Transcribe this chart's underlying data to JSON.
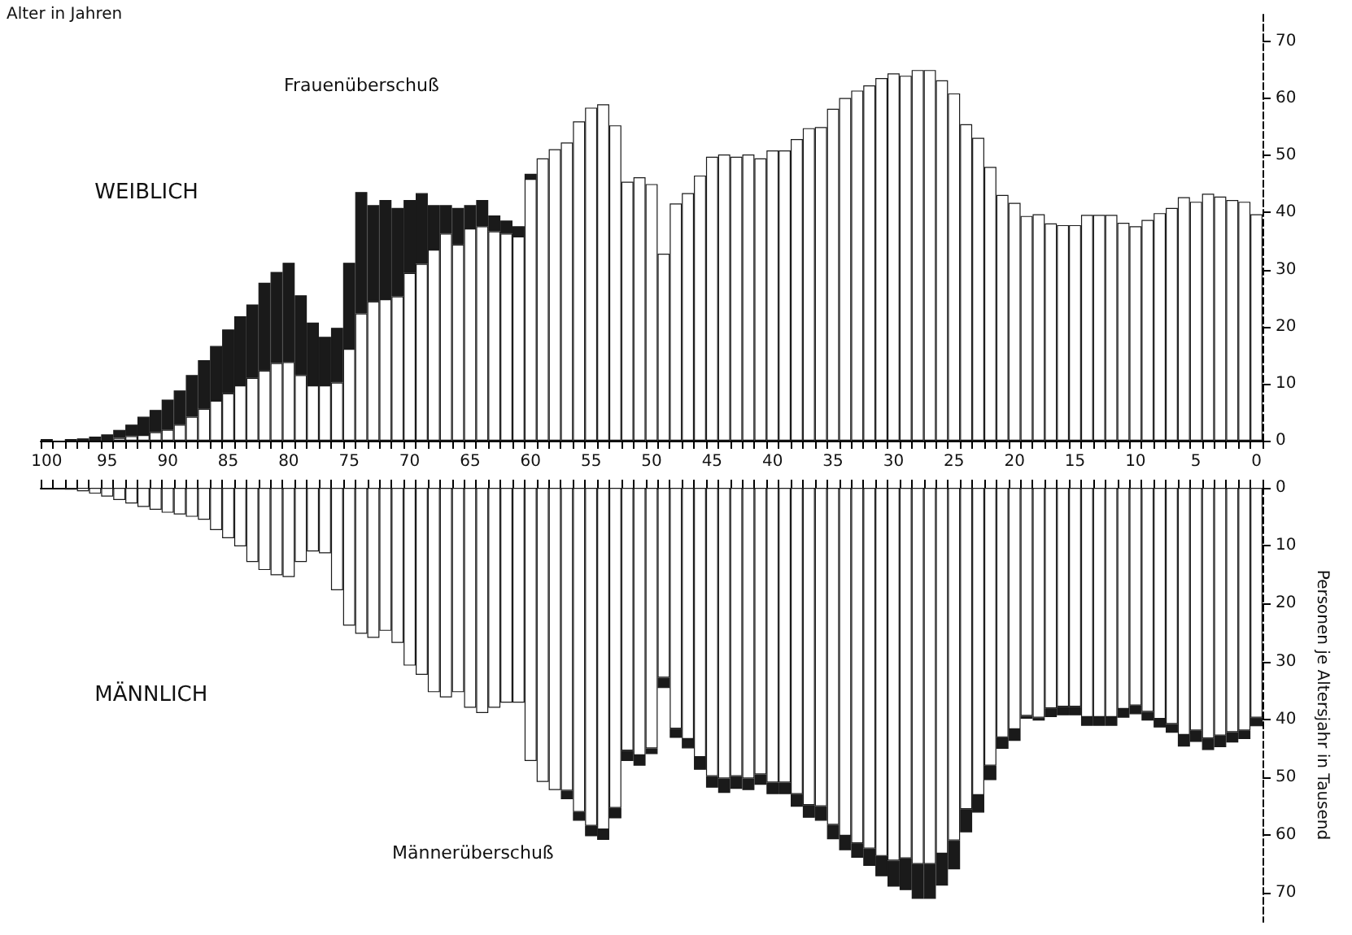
{
  "chart_data": [
    {
      "type": "bar",
      "stacked": true,
      "xlabel": "Alter in Jahren",
      "annotations": [
        "WEIBLICH",
        "Frauenüberschuß"
      ],
      "ylim": [
        0,
        75
      ],
      "yticks": [
        0,
        10,
        20,
        30,
        40,
        50,
        60,
        70
      ],
      "categories": [
        "100",
        null,
        null,
        null,
        null,
        "95",
        null,
        null,
        null,
        null,
        "90",
        null,
        null,
        null,
        null,
        "85",
        null,
        null,
        null,
        null,
        "80",
        null,
        null,
        null,
        null,
        "75",
        null,
        null,
        null,
        null,
        "70",
        null,
        null,
        null,
        null,
        "65",
        null,
        null,
        null,
        null,
        "60",
        null,
        null,
        null,
        null,
        "55",
        null,
        null,
        null,
        null,
        "50",
        null,
        null,
        null,
        null,
        "45",
        null,
        null,
        null,
        null,
        "40",
        null,
        null,
        null,
        null,
        "35",
        null,
        null,
        null,
        null,
        "30",
        null,
        null,
        null,
        null,
        "25",
        null,
        null,
        null,
        null,
        "20",
        null,
        null,
        null,
        null,
        "15",
        null,
        null,
        null,
        null,
        "10",
        null,
        null,
        null,
        null,
        "5",
        null,
        null,
        null,
        null,
        "0"
      ],
      "series": [
        {
          "color": "#ffffff",
          "values": [
            null,
            null,
            null,
            null,
            null,
            null,
            0.5,
            0.8,
            1.0,
            1.5,
            1.9,
            2.8,
            4.2,
            5.6,
            7.0,
            8.3,
            9.7,
            11.0,
            12.3,
            13.6,
            13.8,
            11.5,
            9.7,
            9.7,
            10.2,
            16.1,
            22.3,
            24.4,
            24.8,
            25.3,
            29.4,
            31.0,
            33.5,
            36.3,
            34.4,
            37.2,
            37.6,
            36.7,
            36.3,
            35.8,
            45.9,
            49.5,
            51.1,
            52.3,
            56.0,
            58.4,
            59.0,
            55.3,
            45.4,
            46.2,
            45.0,
            32.8,
            41.6,
            43.4,
            46.5,
            49.8,
            50.2,
            49.8,
            50.2,
            49.5,
            50.9,
            50.9,
            52.9,
            54.8,
            55.0,
            58.2,
            60.1,
            61.4,
            62.3,
            63.6,
            64.4,
            64.0,
            65.0,
            65.0,
            63.2,
            60.9,
            55.5,
            53.1,
            48.0,
            43.1,
            41.7,
            39.4,
            39.7,
            38.1,
            37.8,
            37.8,
            39.6,
            39.6,
            39.6,
            38.2,
            37.6,
            38.7,
            39.9,
            40.8,
            42.7,
            41.9,
            43.3,
            42.8,
            42.2,
            41.9,
            39.7
          ]
        },
        {
          "color": "#1a1a1a",
          "values": [
            0.3,
            null,
            0.3,
            0.4,
            0.7,
            1.1,
            1.4,
            2.0,
            3.2,
            3.9,
            5.3,
            6.0,
            7.3,
            8.5,
            9.6,
            11.2,
            12.1,
            12.9,
            15.4,
            16.0,
            17.4,
            14.0,
            11.0,
            8.5,
            9.6,
            15.1,
            21.3,
            16.9,
            17.4,
            15.5,
            12.8,
            12.4,
            7.8,
            5.0,
            6.4,
            4.1,
            4.6,
            2.8,
            2.3,
            1.8,
            0.9,
            null,
            null,
            null,
            null,
            null,
            null,
            null,
            null,
            null,
            null,
            null,
            null,
            null,
            null,
            null,
            null,
            null,
            null,
            null,
            null,
            null,
            null,
            null,
            null,
            null,
            null,
            null,
            null,
            null,
            null,
            null,
            null,
            null,
            null,
            null,
            null,
            null,
            null,
            null,
            null,
            null,
            null,
            null,
            null,
            null,
            null,
            null,
            null,
            null,
            null,
            null,
            null,
            null,
            null,
            null,
            null,
            null,
            null,
            null,
            null
          ]
        }
      ]
    },
    {
      "type": "bar",
      "stacked": true,
      "ylabel": "Personen je Altersjahr in Tausend",
      "annotations": [
        "MÄNNLICH",
        "Männerüberschuß"
      ],
      "tick_labels": "y",
      "ylim": [
        75,
        0
      ],
      "yticks": [
        0,
        10,
        20,
        30,
        40,
        50,
        60,
        70
      ],
      "categories": [
        "100",
        null,
        null,
        null,
        null,
        "95",
        null,
        null,
        null,
        null,
        "90",
        null,
        null,
        null,
        null,
        "85",
        null,
        null,
        null,
        null,
        "80",
        null,
        null,
        null,
        null,
        "75",
        null,
        null,
        null,
        null,
        "70",
        null,
        null,
        null,
        null,
        "65",
        null,
        null,
        null,
        null,
        "60",
        null,
        null,
        null,
        null,
        "55",
        null,
        null,
        null,
        null,
        "50",
        null,
        null,
        null,
        null,
        "45",
        null,
        null,
        null,
        null,
        "40",
        null,
        null,
        null,
        null,
        "35",
        null,
        null,
        null,
        null,
        "30",
        null,
        null,
        null,
        null,
        "25",
        null,
        null,
        null,
        null,
        "20",
        null,
        null,
        null,
        null,
        "15",
        null,
        null,
        null,
        null,
        "10",
        null,
        null,
        null,
        null,
        "5",
        null,
        null,
        null,
        null,
        "0"
      ],
      "series": [
        {
          "color": "#ffffff",
          "values": [
            null,
            null,
            0.3,
            0.6,
            1.0,
            1.5,
            2.1,
            2.7,
            3.3,
            3.8,
            4.3,
            4.6,
            5.0,
            5.5,
            7.3,
            8.7,
            10.1,
            12.8,
            14.2,
            15.1,
            15.4,
            12.8,
            11.0,
            11.3,
            17.7,
            23.8,
            25.2,
            25.9,
            24.7,
            26.8,
            30.7,
            32.3,
            35.3,
            36.2,
            35.3,
            38.0,
            38.9,
            38.0,
            37.1,
            37.1,
            47.2,
            50.8,
            52.2,
            52.3,
            56.0,
            58.4,
            59.0,
            55.3,
            45.4,
            46.2,
            45.0,
            32.8,
            41.6,
            43.4,
            46.5,
            49.8,
            50.2,
            49.8,
            50.2,
            49.5,
            50.9,
            50.9,
            52.9,
            54.8,
            55.0,
            58.2,
            60.1,
            61.4,
            62.3,
            63.6,
            64.4,
            64.0,
            65.0,
            65.0,
            63.2,
            60.9,
            55.5,
            53.1,
            48.0,
            43.1,
            41.7,
            39.4,
            39.7,
            38.1,
            37.8,
            37.8,
            39.6,
            39.6,
            39.6,
            38.2,
            37.6,
            38.7,
            39.9,
            40.8,
            42.7,
            41.9,
            43.3,
            42.8,
            42.2,
            41.9,
            39.7
          ]
        },
        {
          "color": "#1a1a1a",
          "values": [
            null,
            null,
            null,
            null,
            null,
            null,
            null,
            null,
            null,
            null,
            null,
            null,
            null,
            null,
            null,
            null,
            null,
            null,
            null,
            null,
            null,
            null,
            null,
            null,
            null,
            null,
            null,
            null,
            null,
            null,
            null,
            null,
            null,
            null,
            null,
            null,
            null,
            null,
            null,
            null,
            null,
            null,
            null,
            1.5,
            1.5,
            1.8,
            1.8,
            1.8,
            1.8,
            1.8,
            1.0,
            1.8,
            1.6,
            1.6,
            2.2,
            2.0,
            2.5,
            2.2,
            2.0,
            1.8,
            2.0,
            2.0,
            2.2,
            2.2,
            2.5,
            2.5,
            2.5,
            2.5,
            3,
            3.5,
            4.5,
            5.5,
            6,
            6,
            5.5,
            5,
            4,
            3,
            2.5,
            2,
            2,
            0.5,
            0.5,
            1.5,
            1.5,
            1.5,
            1.5,
            1.5,
            1.5,
            1.5,
            1.5,
            1.5,
            1.5,
            1.5,
            2,
            2,
            2,
            2,
            1.8,
            1.5,
            1.5
          ]
        }
      ]
    }
  ]
}
